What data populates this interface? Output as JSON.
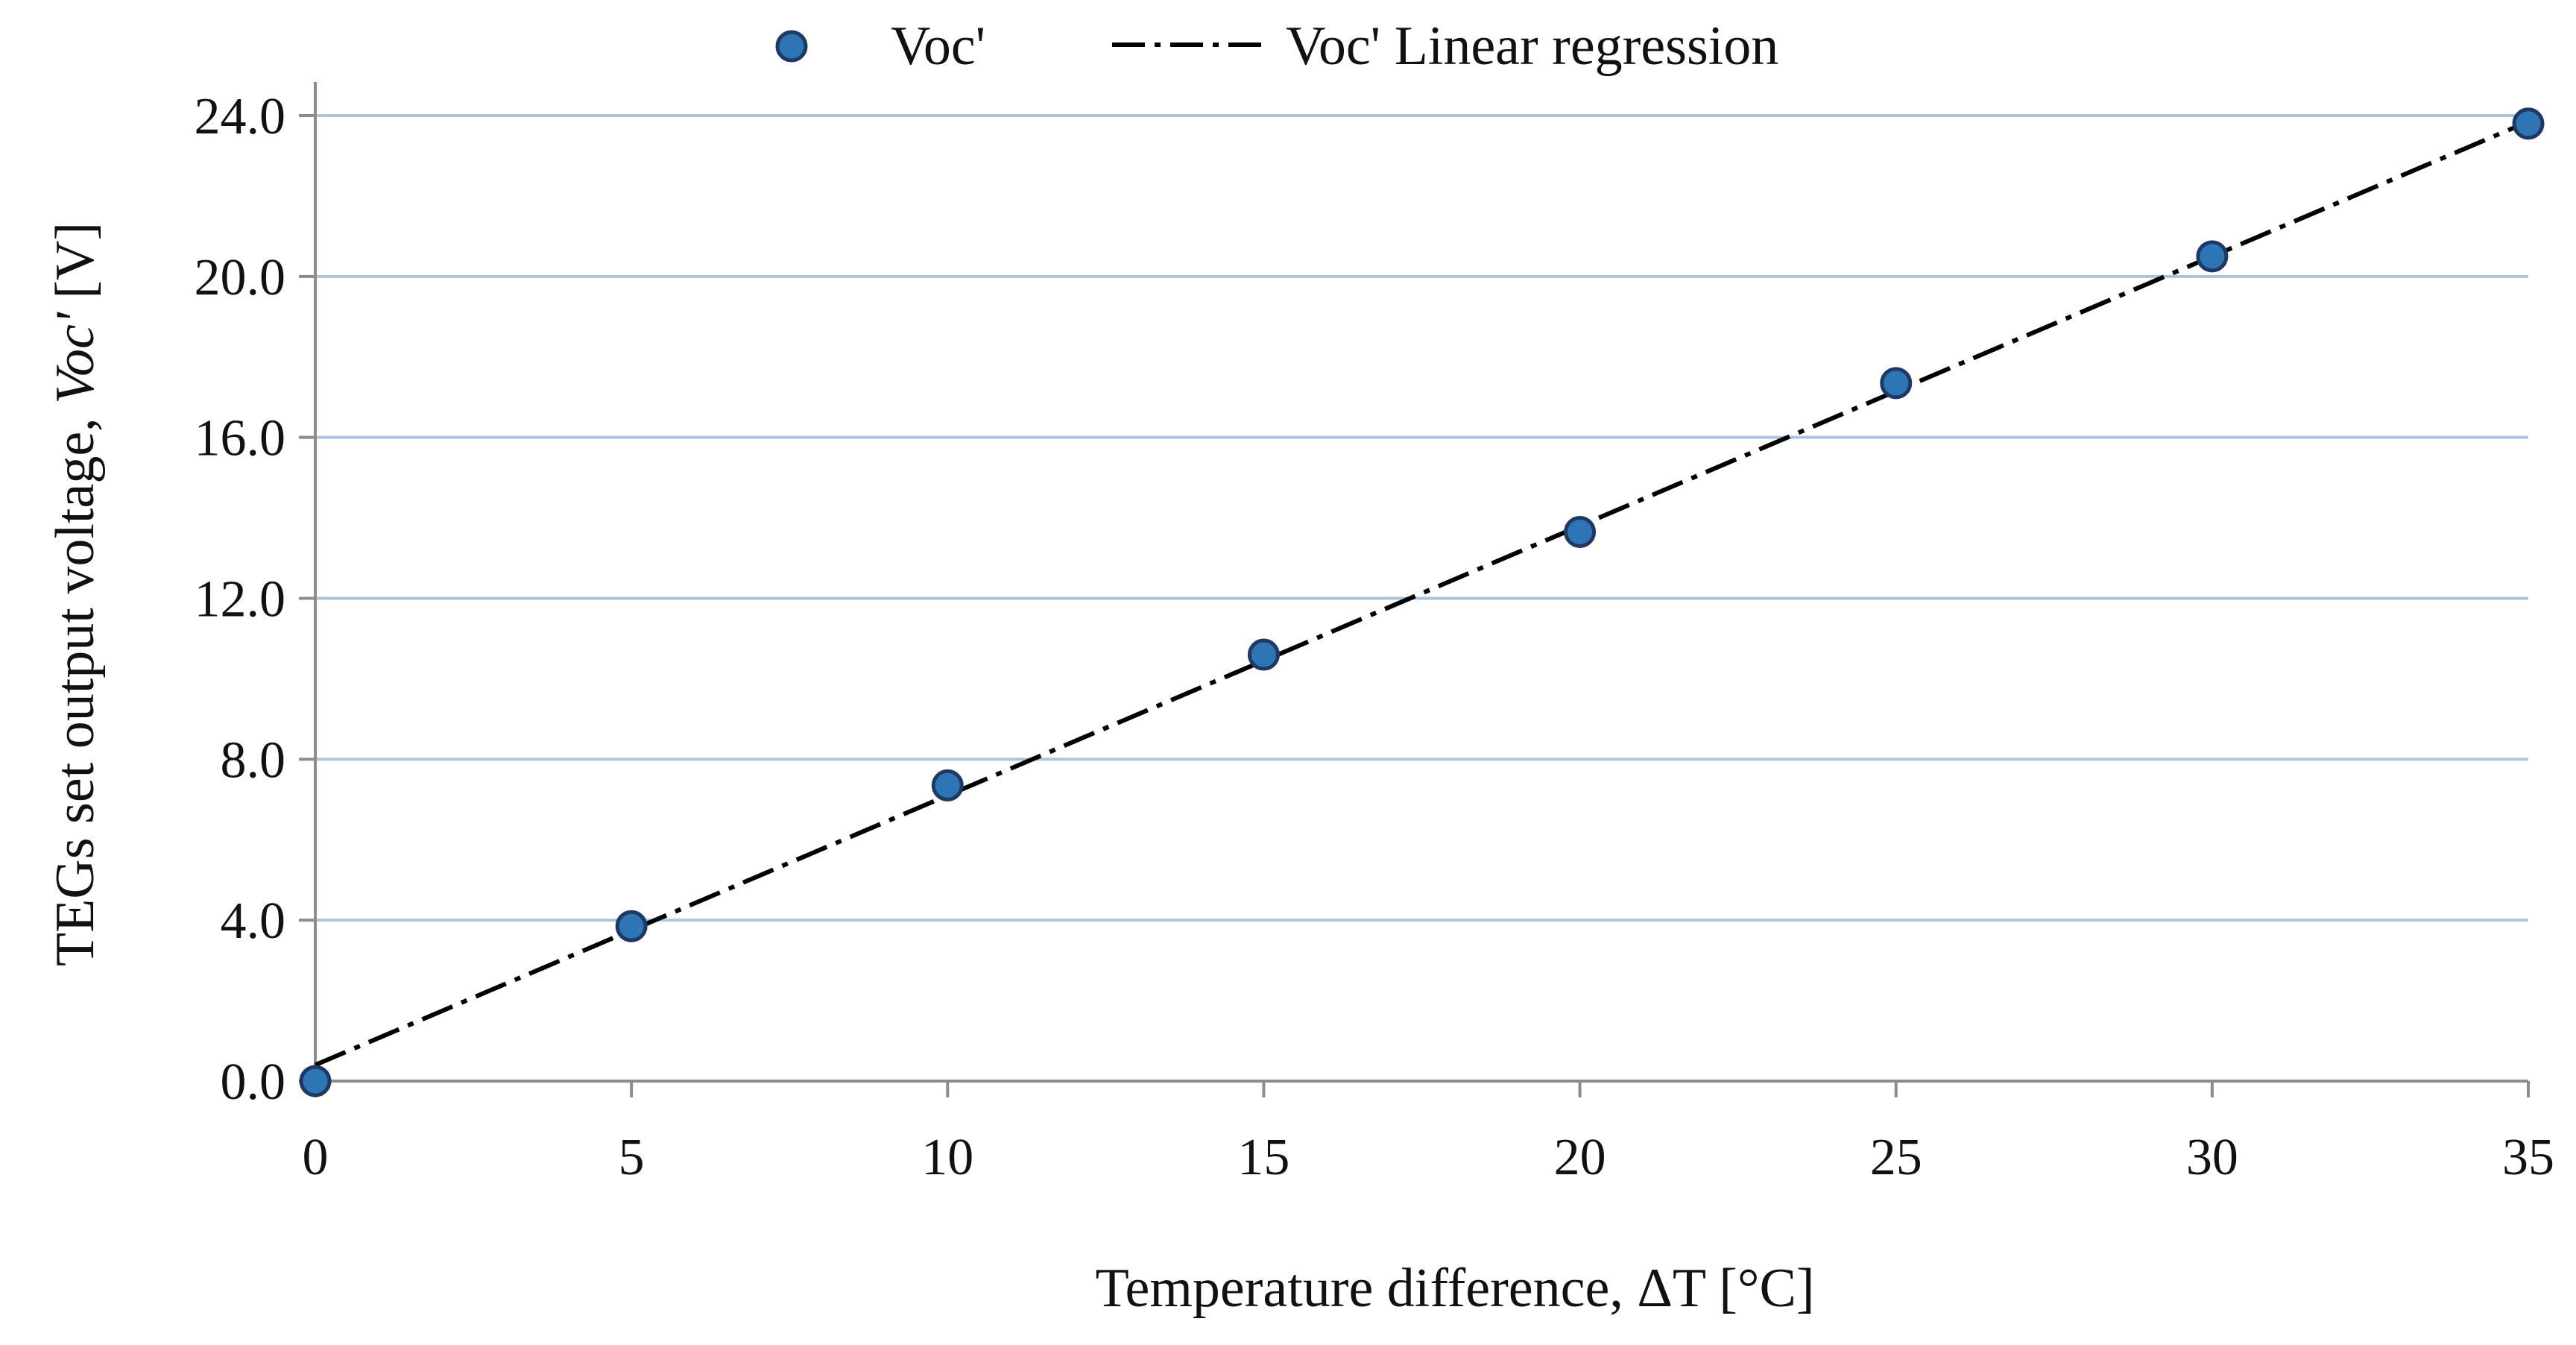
{
  "chart_data": {
    "type": "scatter",
    "title": "",
    "xlabel": "Temperature difference, ΔT [°C]",
    "ylabel": {
      "prefix": "TEGs set output voltage, ",
      "italic": "Voc'",
      "suffix": " [V]"
    },
    "xlim": [
      0,
      35
    ],
    "ylim": [
      0,
      24
    ],
    "xticks": [
      0,
      5,
      10,
      15,
      20,
      25,
      30,
      35
    ],
    "xtick_labels": [
      "0",
      "5",
      "10",
      "15",
      "20",
      "25",
      "30",
      "35"
    ],
    "yticks": [
      0,
      4,
      8,
      12,
      16,
      20,
      24
    ],
    "ytick_labels": [
      "0.0",
      "4.0",
      "8.0",
      "12.0",
      "16.0",
      "20.0",
      "24.0"
    ],
    "grid": "horizontal",
    "legend_position": "top",
    "series": [
      {
        "name": "Voc'",
        "kind": "markers",
        "color": "#2E75B6",
        "edge_color": "#1F3864",
        "x": [
          0,
          5,
          10,
          15,
          20,
          25,
          30,
          35
        ],
        "y": [
          0.0,
          3.85,
          7.35,
          10.6,
          13.65,
          17.35,
          20.5,
          23.8
        ]
      },
      {
        "name": "Voc' Linear regression",
        "kind": "dash-dot-line",
        "color": "#000000",
        "x": [
          0,
          35
        ],
        "y": [
          0.4,
          23.85
        ]
      }
    ],
    "colors": {
      "gridline": "#A9C4DE",
      "axis": "#8C8C8C"
    }
  }
}
